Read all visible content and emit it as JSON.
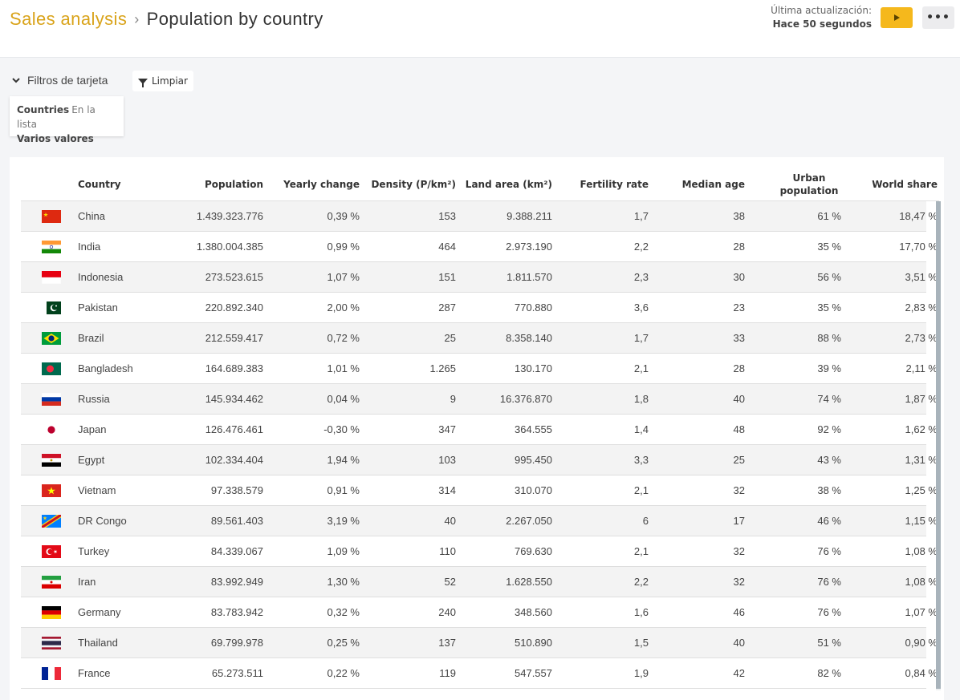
{
  "breadcrumb": {
    "parent": "Sales analysis",
    "separator": "›",
    "title": "Population by country"
  },
  "update": {
    "label": "Última actualización:",
    "value": "Hace 50 segundos"
  },
  "controls": {
    "play_icon": "play-icon",
    "more_label": "•••"
  },
  "filters": {
    "toggle_label": "Filtros de tarjeta",
    "clear_label": "Limpiar",
    "card": {
      "field": "Countries",
      "operator": "En la lista",
      "value": "Varios valores"
    }
  },
  "table": {
    "headers": {
      "country": "Country",
      "population": "Population",
      "yearly_change": "Yearly change",
      "density": "Density (P/km²)",
      "land_area": "Land area (km²)",
      "fertility_rate": "Fertility rate",
      "median_age": "Median age",
      "urban_population_line1": "Urban",
      "urban_population_line2": "population",
      "world_share": "World share"
    },
    "rows": [
      {
        "country": "China",
        "flag": "china",
        "population": "1.439.323.776",
        "yearly_change": "0,39 %",
        "density": "153",
        "land_area": "9.388.211",
        "fertility_rate": "1,7",
        "median_age": "38",
        "urban_population": "61 %",
        "world_share": "18,47 %"
      },
      {
        "country": "India",
        "flag": "india",
        "population": "1.380.004.385",
        "yearly_change": "0,99 %",
        "density": "464",
        "land_area": "2.973.190",
        "fertility_rate": "2,2",
        "median_age": "28",
        "urban_population": "35 %",
        "world_share": "17,70 %"
      },
      {
        "country": "Indonesia",
        "flag": "indonesia",
        "population": "273.523.615",
        "yearly_change": "1,07 %",
        "density": "151",
        "land_area": "1.811.570",
        "fertility_rate": "2,3",
        "median_age": "30",
        "urban_population": "56 %",
        "world_share": "3,51 %"
      },
      {
        "country": "Pakistan",
        "flag": "pakistan",
        "population": "220.892.340",
        "yearly_change": "2,00 %",
        "density": "287",
        "land_area": "770.880",
        "fertility_rate": "3,6",
        "median_age": "23",
        "urban_population": "35 %",
        "world_share": "2,83 %"
      },
      {
        "country": "Brazil",
        "flag": "brazil",
        "population": "212.559.417",
        "yearly_change": "0,72 %",
        "density": "25",
        "land_area": "8.358.140",
        "fertility_rate": "1,7",
        "median_age": "33",
        "urban_population": "88 %",
        "world_share": "2,73 %"
      },
      {
        "country": "Bangladesh",
        "flag": "bangladesh",
        "population": "164.689.383",
        "yearly_change": "1,01 %",
        "density": "1.265",
        "land_area": "130.170",
        "fertility_rate": "2,1",
        "median_age": "28",
        "urban_population": "39 %",
        "world_share": "2,11 %"
      },
      {
        "country": "Russia",
        "flag": "russia",
        "population": "145.934.462",
        "yearly_change": "0,04 %",
        "density": "9",
        "land_area": "16.376.870",
        "fertility_rate": "1,8",
        "median_age": "40",
        "urban_population": "74 %",
        "world_share": "1,87 %"
      },
      {
        "country": "Japan",
        "flag": "japan",
        "population": "126.476.461",
        "yearly_change": "-0,30 %",
        "density": "347",
        "land_area": "364.555",
        "fertility_rate": "1,4",
        "median_age": "48",
        "urban_population": "92 %",
        "world_share": "1,62 %"
      },
      {
        "country": "Egypt",
        "flag": "egypt",
        "population": "102.334.404",
        "yearly_change": "1,94 %",
        "density": "103",
        "land_area": "995.450",
        "fertility_rate": "3,3",
        "median_age": "25",
        "urban_population": "43 %",
        "world_share": "1,31 %"
      },
      {
        "country": "Vietnam",
        "flag": "vietnam",
        "population": "97.338.579",
        "yearly_change": "0,91 %",
        "density": "314",
        "land_area": "310.070",
        "fertility_rate": "2,1",
        "median_age": "32",
        "urban_population": "38 %",
        "world_share": "1,25 %"
      },
      {
        "country": "DR Congo",
        "flag": "drcongo",
        "population": "89.561.403",
        "yearly_change": "3,19 %",
        "density": "40",
        "land_area": "2.267.050",
        "fertility_rate": "6",
        "median_age": "17",
        "urban_population": "46 %",
        "world_share": "1,15 %"
      },
      {
        "country": "Turkey",
        "flag": "turkey",
        "population": "84.339.067",
        "yearly_change": "1,09 %",
        "density": "110",
        "land_area": "769.630",
        "fertility_rate": "2,1",
        "median_age": "32",
        "urban_population": "76 %",
        "world_share": "1,08 %"
      },
      {
        "country": "Iran",
        "flag": "iran",
        "population": "83.992.949",
        "yearly_change": "1,30 %",
        "density": "52",
        "land_area": "1.628.550",
        "fertility_rate": "2,2",
        "median_age": "32",
        "urban_population": "76 %",
        "world_share": "1,08 %"
      },
      {
        "country": "Germany",
        "flag": "germany",
        "population": "83.783.942",
        "yearly_change": "0,32 %",
        "density": "240",
        "land_area": "348.560",
        "fertility_rate": "1,6",
        "median_age": "46",
        "urban_population": "76 %",
        "world_share": "1,07 %"
      },
      {
        "country": "Thailand",
        "flag": "thailand",
        "population": "69.799.978",
        "yearly_change": "0,25 %",
        "density": "137",
        "land_area": "510.890",
        "fertility_rate": "1,5",
        "median_age": "40",
        "urban_population": "51 %",
        "world_share": "0,90 %"
      },
      {
        "country": "France",
        "flag": "france",
        "population": "65.273.511",
        "yearly_change": "0,22 %",
        "density": "119",
        "land_area": "547.557",
        "fertility_rate": "1,9",
        "median_age": "42",
        "urban_population": "82 %",
        "world_share": "0,84 %"
      }
    ]
  },
  "colors": {
    "accent": "#f5b81c",
    "breadcrumb_parent": "#d9a31a",
    "scrollbar": "#a8b3bb"
  }
}
